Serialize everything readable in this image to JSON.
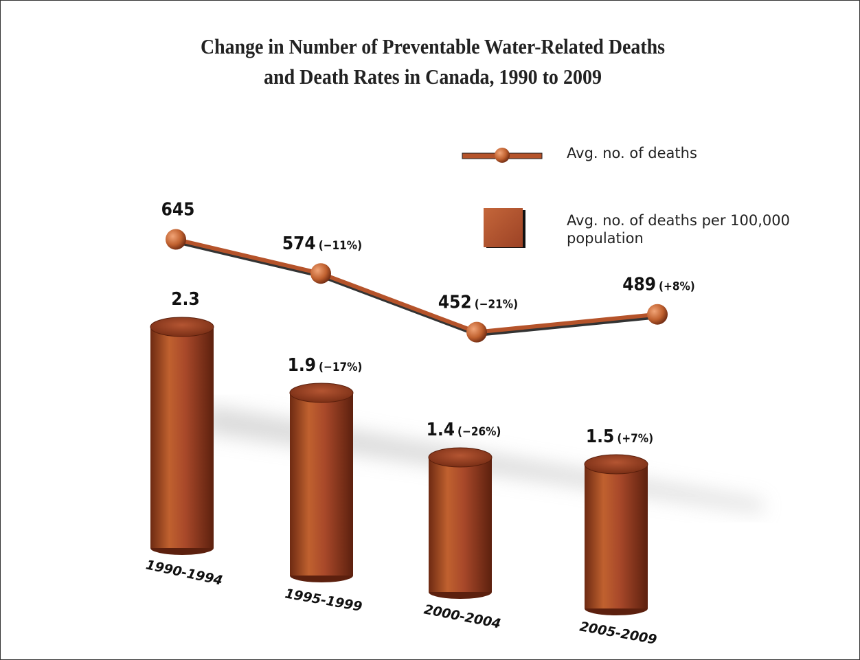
{
  "chart_data": {
    "type": "bar",
    "title": [
      "Change in Number of Preventable Water-Related Deaths",
      "and Death Rates in Canada, 1990 to 2009"
    ],
    "categories": [
      "1990-1994",
      "1995-1999",
      "2000-2004",
      "2005-2009"
    ],
    "series": [
      {
        "name": "Avg. no. of deaths",
        "type": "line",
        "color": "#b5532a",
        "values": [
          645,
          574,
          452,
          489
        ],
        "change_labels": [
          null,
          "(−11%)",
          "(−21%)",
          "(+8%)"
        ]
      },
      {
        "name": "Avg. no. of deaths per 100,000 population",
        "type": "bar",
        "color": "#a8482a",
        "values": [
          2.3,
          1.9,
          1.4,
          1.5
        ],
        "change_labels": [
          null,
          "(−17%)",
          "(−26%)",
          "(+7%)"
        ]
      }
    ]
  }
}
